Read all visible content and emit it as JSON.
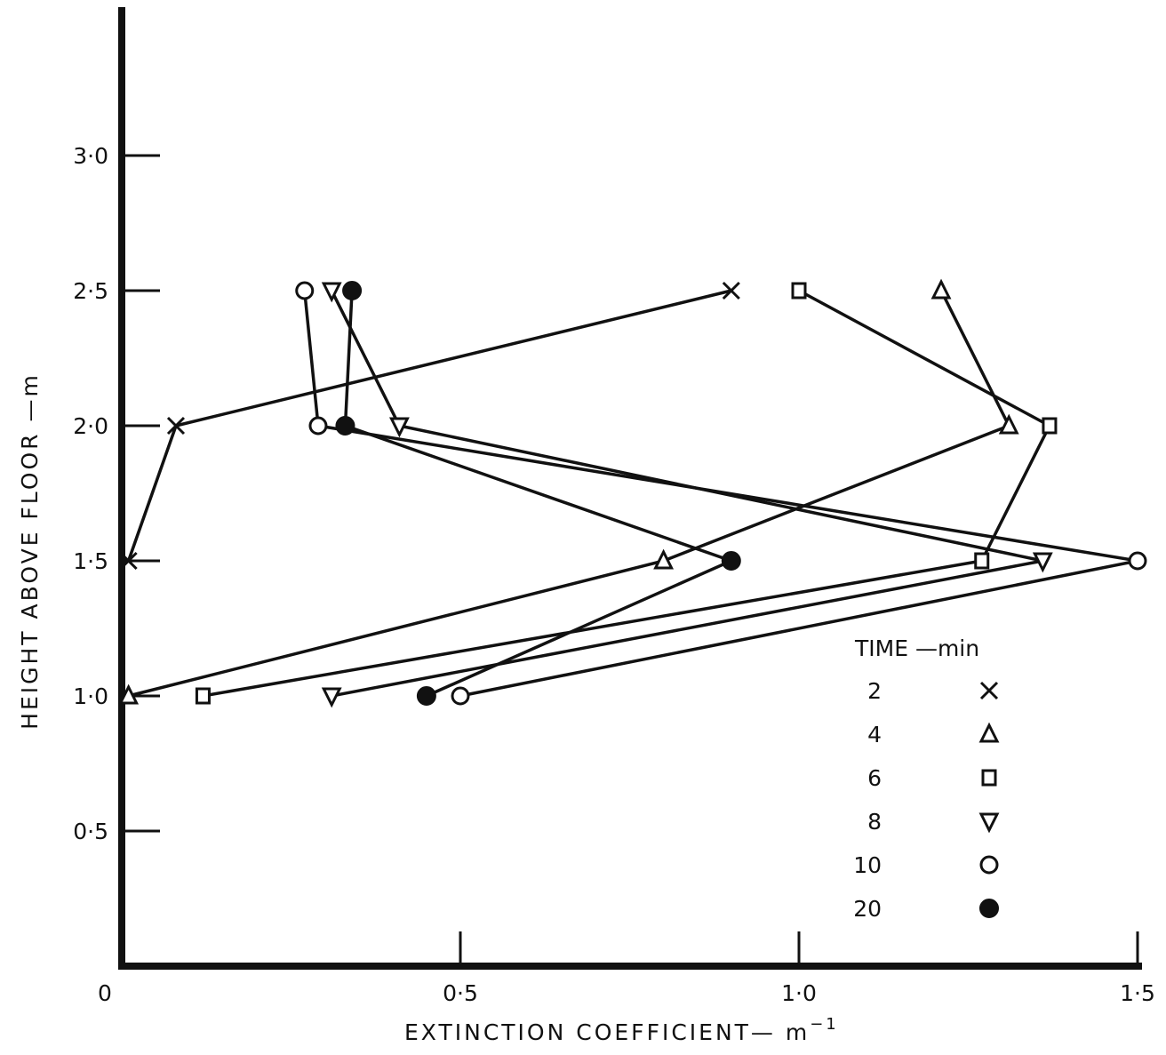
{
  "chart_data": {
    "type": "line",
    "title": "",
    "xlabel": "EXTINCTION COEFFICIENT— m",
    "xlabel_superscript": "−1",
    "ylabel": "HEIGHT ABOVE FLOOR —m",
    "xlim": [
      0,
      1.5
    ],
    "ylim": [
      0,
      3.5
    ],
    "x_ticks": [
      {
        "value": 0,
        "label": "0"
      },
      {
        "value": 0.5,
        "label": "0·5"
      },
      {
        "value": 1.0,
        "label": "1·0"
      },
      {
        "value": 1.5,
        "label": "1·5"
      }
    ],
    "y_ticks": [
      {
        "value": 0.5,
        "label": "0·5"
      },
      {
        "value": 1.0,
        "label": "1·0"
      },
      {
        "value": 1.5,
        "label": "1·5"
      },
      {
        "value": 2.0,
        "label": "2·0"
      },
      {
        "value": 2.5,
        "label": "2·5"
      },
      {
        "value": 3.0,
        "label": "3·0"
      }
    ],
    "legend_title": "TIME —min",
    "legend_position": "bottom-right",
    "grid": false,
    "series": [
      {
        "name": "2",
        "marker": "x",
        "points": [
          [
            0.9,
            2.5
          ],
          [
            0.08,
            2.0
          ],
          [
            0.01,
            1.5
          ]
        ]
      },
      {
        "name": "4",
        "marker": "triangle-up",
        "points": [
          [
            1.21,
            2.5
          ],
          [
            1.31,
            2.0
          ],
          [
            0.8,
            1.5
          ],
          [
            0.01,
            1.0
          ]
        ]
      },
      {
        "name": "6",
        "marker": "square",
        "points": [
          [
            1.0,
            2.5
          ],
          [
            1.37,
            2.0
          ],
          [
            1.27,
            1.5
          ],
          [
            0.12,
            1.0
          ]
        ]
      },
      {
        "name": "8",
        "marker": "triangle-down",
        "points": [
          [
            0.31,
            2.5
          ],
          [
            0.41,
            2.0
          ],
          [
            1.36,
            1.5
          ],
          [
            0.31,
            1.0
          ]
        ]
      },
      {
        "name": "10",
        "marker": "circle-open",
        "points": [
          [
            0.27,
            2.5
          ],
          [
            0.29,
            2.0
          ],
          [
            1.5,
            1.5
          ],
          [
            0.5,
            1.0
          ]
        ]
      },
      {
        "name": "20",
        "marker": "circle-filled",
        "points": [
          [
            0.34,
            2.5
          ],
          [
            0.33,
            2.0
          ],
          [
            0.9,
            1.5
          ],
          [
            0.45,
            1.0
          ]
        ]
      }
    ]
  }
}
